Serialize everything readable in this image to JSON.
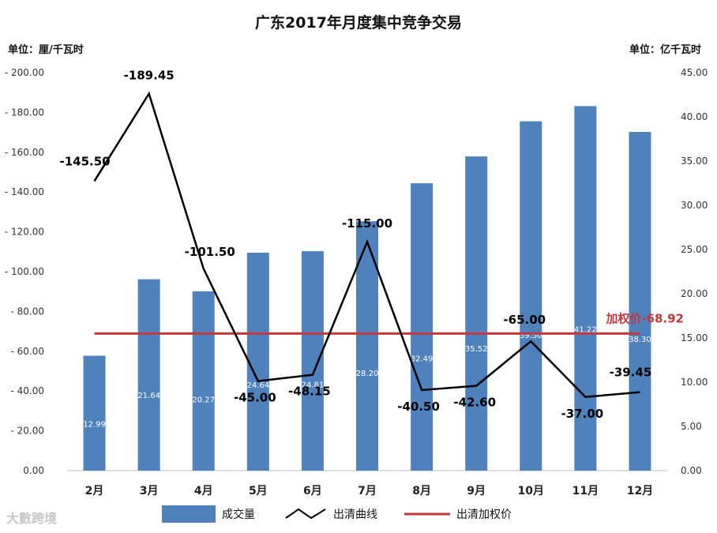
{
  "chart_data": {
    "type": "bar+line",
    "title": "广东2017年月度集中竞争交易",
    "left_unit": "单位：厘/千瓦时",
    "right_unit": "单位：亿千瓦时",
    "categories": [
      "2月",
      "3月",
      "4月",
      "5月",
      "6月",
      "7月",
      "8月",
      "9月",
      "10月",
      "11月",
      "12月"
    ],
    "series": [
      {
        "name": "成交量",
        "type": "bar",
        "axis": "right",
        "color": "#4f81bd",
        "values": [
          12.99,
          21.64,
          20.27,
          24.64,
          24.81,
          28.2,
          32.49,
          35.52,
          39.5,
          41.22,
          38.3
        ],
        "labels": [
          "12.99",
          "21.64",
          "20.27",
          "24.64",
          "24.81",
          "28.20",
          "32.49",
          "35.52",
          "39.50",
          "41.22",
          "38.30"
        ]
      },
      {
        "name": "出清曲线",
        "type": "line",
        "axis": "left",
        "color": "#000000",
        "values": [
          -145.5,
          -189.45,
          -101.5,
          -45.0,
          -48.15,
          -115.0,
          -40.5,
          -42.6,
          -65.0,
          -37.0,
          -39.45
        ],
        "labels": [
          "-145.50",
          "-189.45",
          "-101.50",
          "-45.00",
          "-48.15",
          "-115.00",
          "-40.50",
          "-42.60",
          "-65.00",
          "-37.00",
          "-39.45"
        ]
      },
      {
        "name": "出清加权价",
        "type": "hline",
        "axis": "left",
        "color": "#c0393b",
        "value": -68.92,
        "label": "加权价-68.92"
      }
    ],
    "left_axis": {
      "ylim": [
        0,
        200
      ],
      "ticks": [
        "0.00",
        "- 20.00",
        "- 40.00",
        "- 60.00",
        "- 80.00",
        "- 100.00",
        "- 120.00",
        "- 140.00",
        "- 160.00",
        "- 180.00",
        "- 200.00"
      ]
    },
    "right_axis": {
      "ylim": [
        0,
        45
      ],
      "ticks": [
        "0.00",
        "5.00",
        "10.00",
        "15.00",
        "20.00",
        "25.00",
        "30.00",
        "35.00",
        "40.00",
        "45.00"
      ]
    },
    "legend": [
      "成交量",
      "出清曲线",
      "出清加权价"
    ],
    "legend_position": "bottom"
  },
  "watermark": "大數跨境"
}
